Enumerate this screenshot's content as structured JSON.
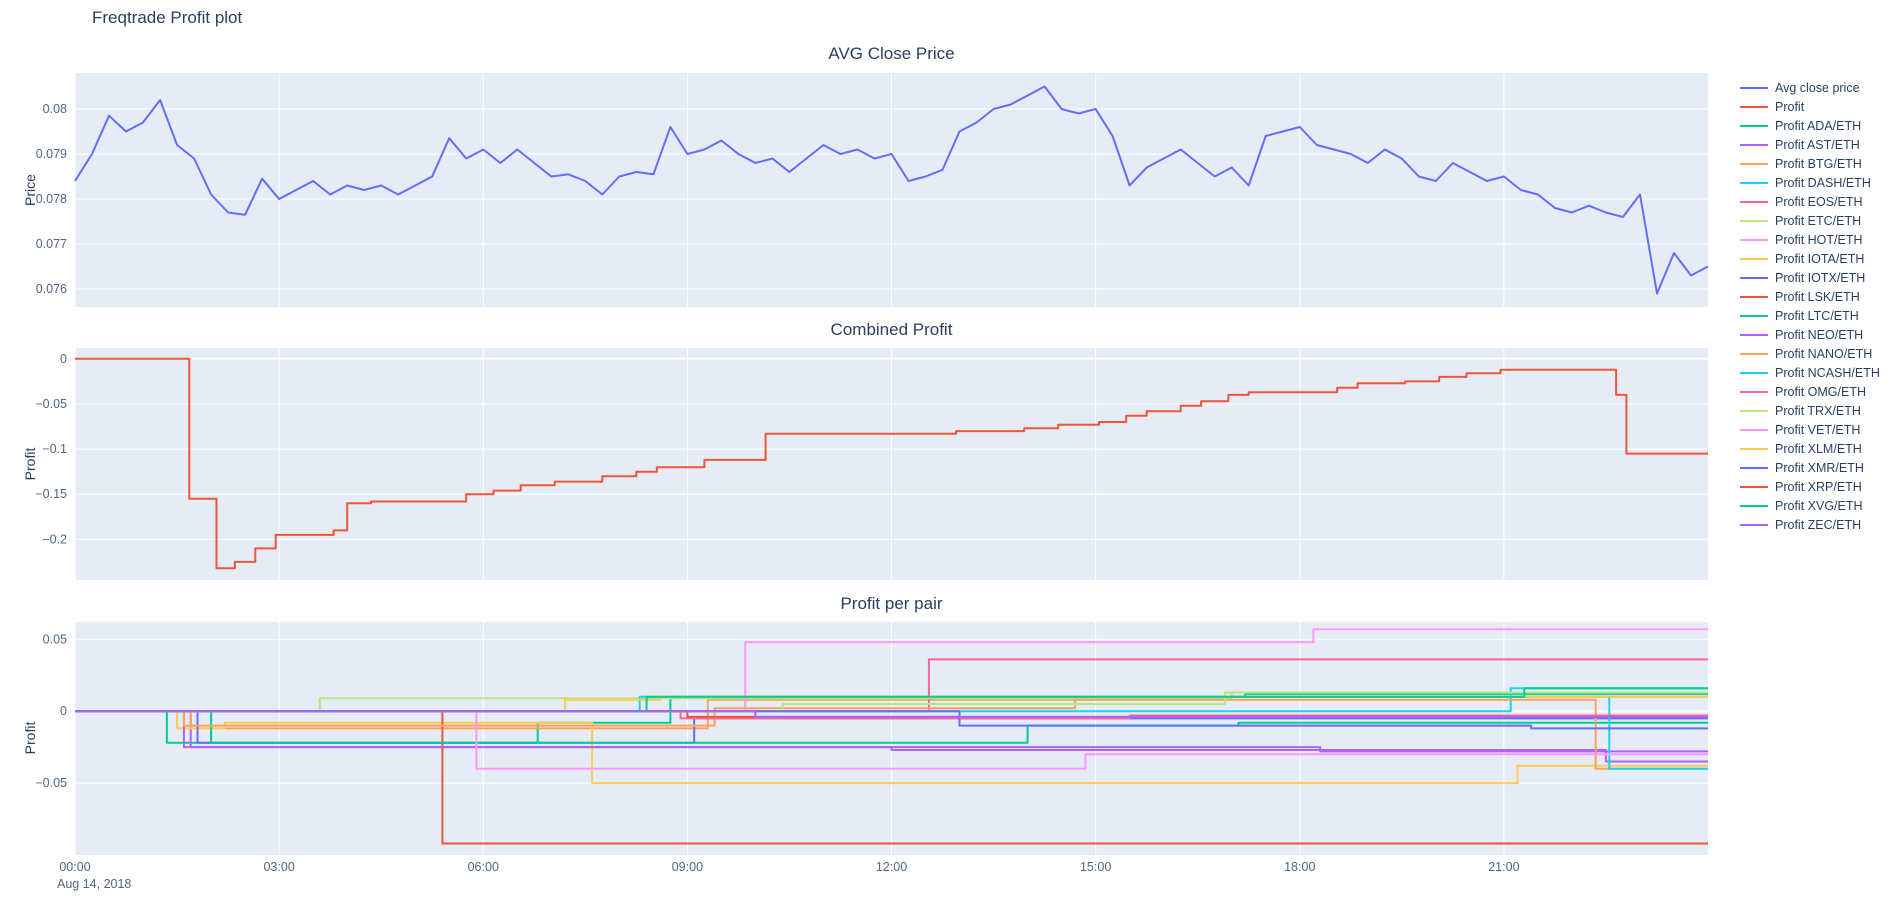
{
  "page": {
    "title": "Freqtrade Profit plot"
  },
  "colors": {
    "plot_bg": "#E5ECF6",
    "grid": "#FFFFFF",
    "title_text": "#2a3f5f",
    "tick_text": "#506784",
    "avg_close": "#636EFA",
    "profit": "#EF553B"
  },
  "axis": {
    "date_label": "Aug 14, 2018"
  },
  "legend": {
    "items": [
      {
        "label": "Avg close price",
        "color": "#636EFA"
      },
      {
        "label": "Profit",
        "color": "#EF553B"
      },
      {
        "label": "Profit ADA/ETH",
        "color": "#00CC96"
      },
      {
        "label": "Profit AST/ETH",
        "color": "#AB63FA"
      },
      {
        "label": "Profit BTG/ETH",
        "color": "#FFA15A"
      },
      {
        "label": "Profit DASH/ETH",
        "color": "#19D3F3"
      },
      {
        "label": "Profit EOS/ETH",
        "color": "#FF6692"
      },
      {
        "label": "Profit ETC/ETH",
        "color": "#B6E880"
      },
      {
        "label": "Profit HOT/ETH",
        "color": "#FF97FF"
      },
      {
        "label": "Profit IOTA/ETH",
        "color": "#FECB52"
      },
      {
        "label": "Profit IOTX/ETH",
        "color": "#636EFA"
      },
      {
        "label": "Profit LSK/ETH",
        "color": "#EF553B"
      },
      {
        "label": "Profit LTC/ETH",
        "color": "#00CC96"
      },
      {
        "label": "Profit NEO/ETH",
        "color": "#AB63FA"
      },
      {
        "label": "Profit NANO/ETH",
        "color": "#FFA15A"
      },
      {
        "label": "Profit NCASH/ETH",
        "color": "#19D3F3"
      },
      {
        "label": "Profit OMG/ETH",
        "color": "#FF6692"
      },
      {
        "label": "Profit TRX/ETH",
        "color": "#B6E880"
      },
      {
        "label": "Profit VET/ETH",
        "color": "#FF97FF"
      },
      {
        "label": "Profit XLM/ETH",
        "color": "#FECB52"
      },
      {
        "label": "Profit XMR/ETH",
        "color": "#636EFA"
      },
      {
        "label": "Profit XRP/ETH",
        "color": "#EF553B"
      },
      {
        "label": "Profit XVG/ETH",
        "color": "#00CC96"
      },
      {
        "label": "Profit ZEC/ETH",
        "color": "#AB63FA"
      }
    ]
  },
  "chart_data": [
    {
      "type": "line",
      "title": "AVG Close Price",
      "ylabel": "Price",
      "x_range": [
        0,
        24
      ],
      "y_range": [
        0.0756,
        0.0808
      ],
      "yticks": [
        0.076,
        0.077,
        0.078,
        0.079,
        0.08
      ],
      "ytick_labels": [
        "0.076",
        "0.077",
        "0.078",
        "0.079",
        "0.08"
      ],
      "xticks": [
        0,
        3,
        6,
        9,
        12,
        15,
        18,
        21
      ],
      "grid": true,
      "legend_position": "right",
      "series": [
        {
          "name": "Avg close price",
          "color": "#636EFA",
          "mode": "linear",
          "x_start": 0,
          "x_step": 0.25,
          "y": [
            0.0784,
            0.079,
            0.07985,
            0.0795,
            0.0797,
            0.0802,
            0.0792,
            0.0789,
            0.0781,
            0.0777,
            0.07765,
            0.07845,
            0.078,
            0.0782,
            0.0784,
            0.0781,
            0.0783,
            0.0782,
            0.0783,
            0.0781,
            0.0783,
            0.0785,
            0.07935,
            0.0789,
            0.0791,
            0.0788,
            0.0791,
            0.0788,
            0.0785,
            0.07855,
            0.0784,
            0.0781,
            0.0785,
            0.0786,
            0.07855,
            0.0796,
            0.079,
            0.0791,
            0.0793,
            0.079,
            0.0788,
            0.0789,
            0.0786,
            0.0789,
            0.0792,
            0.079,
            0.0791,
            0.0789,
            0.079,
            0.0784,
            0.0785,
            0.07865,
            0.0795,
            0.0797,
            0.08,
            0.0801,
            0.0803,
            0.0805,
            0.08,
            0.0799,
            0.08,
            0.0794,
            0.0783,
            0.0787,
            0.0789,
            0.0791,
            0.0788,
            0.0785,
            0.0787,
            0.0783,
            0.0794,
            0.0795,
            0.0796,
            0.0792,
            0.0791,
            0.079,
            0.0788,
            0.0791,
            0.0789,
            0.0785,
            0.0784,
            0.0788,
            0.0786,
            0.0784,
            0.0785,
            0.0782,
            0.0781,
            0.0778,
            0.0777,
            0.07785,
            0.0777,
            0.0776,
            0.0781,
            0.0759,
            0.0768,
            0.0763,
            0.0765
          ]
        }
      ]
    },
    {
      "type": "line",
      "title": "Combined Profit",
      "ylabel": "Profit",
      "x_range": [
        0,
        24
      ],
      "y_range": [
        -0.245,
        0.012
      ],
      "yticks": [
        0,
        -0.05,
        -0.1,
        -0.15,
        -0.2
      ],
      "ytick_labels": [
        "0",
        "−0.05",
        "−0.1",
        "−0.15",
        "−0.2"
      ],
      "xticks": [
        0,
        3,
        6,
        9,
        12,
        15,
        18,
        21
      ],
      "grid": true,
      "series": [
        {
          "name": "Profit",
          "color": "#EF553B",
          "mode": "step",
          "points": [
            [
              0,
              0
            ],
            [
              1.68,
              -0.155
            ],
            [
              2.08,
              -0.232
            ],
            [
              2.35,
              -0.225
            ],
            [
              2.65,
              -0.21
            ],
            [
              2.95,
              -0.195
            ],
            [
              3.8,
              -0.19
            ],
            [
              4.0,
              -0.16
            ],
            [
              4.35,
              -0.158
            ],
            [
              5.75,
              -0.15
            ],
            [
              6.15,
              -0.146
            ],
            [
              6.55,
              -0.14
            ],
            [
              7.05,
              -0.136
            ],
            [
              7.75,
              -0.13
            ],
            [
              8.25,
              -0.125
            ],
            [
              8.55,
              -0.12
            ],
            [
              9.25,
              -0.112
            ],
            [
              10.15,
              -0.083
            ],
            [
              12.95,
              -0.08
            ],
            [
              13.95,
              -0.077
            ],
            [
              14.45,
              -0.073
            ],
            [
              15.05,
              -0.07
            ],
            [
              15.45,
              -0.063
            ],
            [
              15.75,
              -0.058
            ],
            [
              16.25,
              -0.052
            ],
            [
              16.55,
              -0.047
            ],
            [
              16.95,
              -0.04
            ],
            [
              17.25,
              -0.037
            ],
            [
              18.55,
              -0.032
            ],
            [
              18.85,
              -0.027
            ],
            [
              19.55,
              -0.025
            ],
            [
              20.05,
              -0.02
            ],
            [
              20.45,
              -0.016
            ],
            [
              20.95,
              -0.012
            ],
            [
              22.65,
              -0.04
            ],
            [
              22.8,
              -0.105
            ],
            [
              24,
              -0.105
            ]
          ]
        }
      ]
    },
    {
      "type": "line",
      "title": "Profit per pair",
      "ylabel": "Profit",
      "x_range": [
        0,
        24
      ],
      "y_range": [
        -0.1,
        0.062
      ],
      "yticks": [
        0.05,
        0,
        -0.05
      ],
      "ytick_labels": [
        "0.05",
        "0",
        "−0.05"
      ],
      "xticks": [
        0,
        3,
        6,
        9,
        12,
        15,
        18,
        21
      ],
      "xtick_labels": [
        "00:00",
        "03:00",
        "06:00",
        "09:00",
        "12:00",
        "15:00",
        "18:00",
        "21:00"
      ],
      "grid": true,
      "series": [
        {
          "name": "Profit ADA/ETH",
          "color": "#00CC96",
          "mode": "step",
          "points": [
            [
              0,
              0
            ],
            [
              1.35,
              -0.022
            ],
            [
              6.8,
              -0.008
            ],
            [
              8.75,
              0.01
            ],
            [
              17.2,
              0.012
            ],
            [
              24,
              0.012
            ]
          ]
        },
        {
          "name": "Profit AST/ETH",
          "color": "#AB63FA",
          "mode": "step",
          "points": [
            [
              0,
              0
            ],
            [
              1.7,
              -0.025
            ],
            [
              18.3,
              -0.028
            ],
            [
              24,
              -0.028
            ]
          ]
        },
        {
          "name": "Profit BTG/ETH",
          "color": "#FFA15A",
          "mode": "step",
          "points": [
            [
              0,
              0
            ],
            [
              1.7,
              -0.012
            ],
            [
              9.3,
              0.008
            ],
            [
              15.0,
              0.01
            ],
            [
              24,
              0.01
            ]
          ]
        },
        {
          "name": "Profit DASH/ETH",
          "color": "#19D3F3",
          "mode": "step",
          "points": [
            [
              0,
              0
            ],
            [
              21.1,
              0.016
            ],
            [
              24,
              0.016
            ]
          ]
        },
        {
          "name": "Profit EOS/ETH",
          "color": "#FF6692",
          "mode": "step",
          "points": [
            [
              0,
              0
            ],
            [
              12.55,
              0.036
            ],
            [
              24,
              0.036
            ]
          ]
        },
        {
          "name": "Profit ETC/ETH",
          "color": "#B6E880",
          "mode": "step",
          "points": [
            [
              0,
              0
            ],
            [
              3.6,
              0.009
            ],
            [
              17.0,
              0.013
            ],
            [
              24,
              0.013
            ]
          ]
        },
        {
          "name": "Profit HOT/ETH",
          "color": "#FF97FF",
          "mode": "step",
          "points": [
            [
              0,
              0
            ],
            [
              9.85,
              0.048
            ],
            [
              18.2,
              0.057
            ],
            [
              24,
              0.057
            ]
          ]
        },
        {
          "name": "Profit IOTA/ETH",
          "color": "#FECB52",
          "mode": "step",
          "points": [
            [
              0,
              0
            ],
            [
              1.5,
              -0.012
            ],
            [
              2.2,
              -0.008
            ],
            [
              7.6,
              -0.05
            ],
            [
              21.2,
              -0.038
            ],
            [
              24,
              -0.038
            ]
          ]
        },
        {
          "name": "Profit IOTX/ETH",
          "color": "#636EFA",
          "mode": "step",
          "points": [
            [
              0,
              0
            ],
            [
              1.8,
              -0.022
            ],
            [
              9.1,
              -0.005
            ],
            [
              24,
              -0.005
            ]
          ]
        },
        {
          "name": "Profit LSK/ETH",
          "color": "#EF553B",
          "mode": "step",
          "points": [
            [
              0,
              0
            ],
            [
              5.4,
              -0.092
            ],
            [
              24,
              -0.092
            ]
          ]
        },
        {
          "name": "Profit LTC/ETH",
          "color": "#00CC96",
          "mode": "step",
          "points": [
            [
              0,
              0
            ],
            [
              2.0,
              -0.022
            ],
            [
              14.0,
              -0.01
            ],
            [
              17.1,
              -0.008
            ],
            [
              24,
              -0.008
            ]
          ]
        },
        {
          "name": "Profit NEO/ETH",
          "color": "#AB63FA",
          "mode": "step",
          "points": [
            [
              0,
              0
            ],
            [
              1.6,
              -0.025
            ],
            [
              12.0,
              -0.027
            ],
            [
              22.5,
              -0.035
            ],
            [
              24,
              -0.035
            ]
          ]
        },
        {
          "name": "Profit NANO/ETH",
          "color": "#FFA15A",
          "mode": "step",
          "points": [
            [
              0,
              0
            ],
            [
              1.6,
              -0.01
            ],
            [
              9.4,
              0.002
            ],
            [
              14.7,
              0.008
            ],
            [
              22.35,
              -0.04
            ],
            [
              24,
              -0.04
            ]
          ]
        },
        {
          "name": "Profit NCASH/ETH",
          "color": "#19D3F3",
          "mode": "step",
          "points": [
            [
              0,
              0
            ],
            [
              8.3,
              0.01
            ],
            [
              22.55,
              -0.04
            ],
            [
              24,
              -0.04
            ]
          ]
        },
        {
          "name": "Profit OMG/ETH",
          "color": "#FF6692",
          "mode": "step",
          "points": [
            [
              0,
              0
            ],
            [
              8.9,
              -0.005
            ],
            [
              15.5,
              -0.003
            ],
            [
              24,
              -0.003
            ]
          ]
        },
        {
          "name": "Profit TRX/ETH",
          "color": "#B6E880",
          "mode": "step",
          "points": [
            [
              0,
              0
            ],
            [
              10.4,
              0.005
            ],
            [
              16.9,
              0.013
            ],
            [
              24,
              0.013
            ]
          ]
        },
        {
          "name": "Profit VET/ETH",
          "color": "#FF97FF",
          "mode": "step",
          "points": [
            [
              0,
              0
            ],
            [
              5.9,
              -0.04
            ],
            [
              14.85,
              -0.03
            ],
            [
              24,
              -0.03
            ]
          ]
        },
        {
          "name": "Profit XLM/ETH",
          "color": "#FECB52",
          "mode": "step",
          "points": [
            [
              0,
              0
            ],
            [
              7.2,
              0.008
            ],
            [
              8.6,
              0.01
            ],
            [
              24,
              0.01
            ]
          ]
        },
        {
          "name": "Profit XMR/ETH",
          "color": "#636EFA",
          "mode": "step",
          "points": [
            [
              0,
              0
            ],
            [
              13.0,
              -0.01
            ],
            [
              21.4,
              -0.012
            ],
            [
              24,
              -0.012
            ]
          ]
        },
        {
          "name": "Profit XRP/ETH",
          "color": "#EF553B",
          "mode": "step",
          "points": [
            [
              0,
              0
            ],
            [
              9.0,
              -0.004
            ],
            [
              24,
              -0.004
            ]
          ]
        },
        {
          "name": "Profit XVG/ETH",
          "color": "#00CC96",
          "mode": "step",
          "points": [
            [
              0,
              0
            ],
            [
              8.4,
              0.01
            ],
            [
              21.3,
              0.016
            ],
            [
              24,
              0.016
            ]
          ]
        },
        {
          "name": "Profit ZEC/ETH",
          "color": "#AB63FA",
          "mode": "step",
          "points": [
            [
              0,
              0
            ],
            [
              10.0,
              -0.004
            ],
            [
              24,
              -0.004
            ]
          ]
        }
      ]
    }
  ]
}
